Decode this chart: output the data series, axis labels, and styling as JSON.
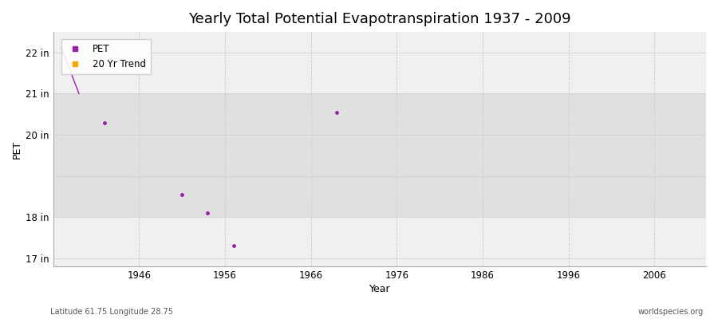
{
  "title": "Yearly Total Potential Evapotranspiration 1937 - 2009",
  "xlabel": "Year",
  "ylabel": "PET",
  "xlim": [
    1936,
    2012
  ],
  "ylim": [
    16.8,
    22.5
  ],
  "yticks": [
    17,
    18,
    19,
    20,
    21,
    22
  ],
  "ytick_labels": [
    "17 in",
    "18 in",
    "",
    "20 in",
    "21 in",
    "22 in"
  ],
  "xticks": [
    1946,
    1956,
    1966,
    1976,
    1986,
    1996,
    2006
  ],
  "pet_line_x": [
    1937,
    1939
  ],
  "pet_line_y": [
    22.1,
    21.0
  ],
  "pet_points_x": [
    1942,
    1951,
    1954,
    1957,
    1969
  ],
  "pet_points_y": [
    20.3,
    18.55,
    18.1,
    17.3,
    20.55
  ],
  "pet_color": "#9B1FAB",
  "trend_color": "#FFA500",
  "grid_color": "#cccccc",
  "subtitle_left": "Latitude 61.75 Longitude 28.75",
  "subtitle_right": "worldspecies.org",
  "title_fontsize": 13,
  "axis_label_fontsize": 9,
  "tick_fontsize": 8.5,
  "legend_fontsize": 8.5,
  "band_ranges": [
    [
      16.8,
      18.0
    ],
    [
      18.0,
      21.0
    ],
    [
      21.0,
      22.5
    ]
  ],
  "band_colors": [
    "#f0f0f0",
    "#e0e0e0",
    "#f0f0f0"
  ]
}
